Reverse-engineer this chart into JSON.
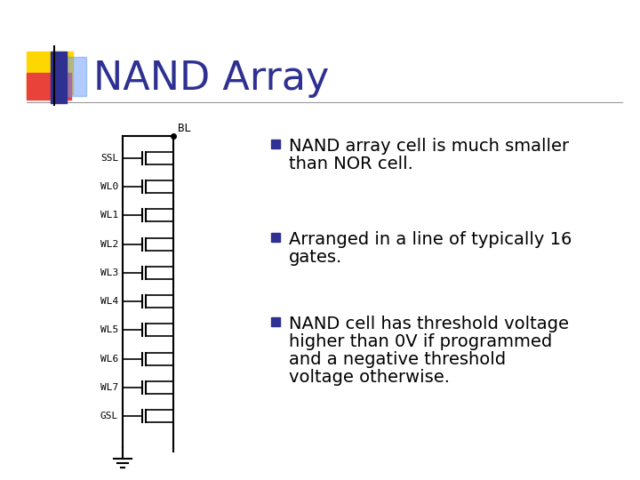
{
  "title": "NAND Array",
  "title_color": "#2E3192",
  "title_fontsize": 32,
  "background_color": "#FFFFFF",
  "header_bar_color": "#2E3192",
  "header_yellow_color": "#FFD700",
  "header_red_color": "#E8423A",
  "header_blue_glow_color": "#6699FF",
  "bullet_color": "#2E3192",
  "bullet_points": [
    "NAND array cell is much smaller\nthan NOR cell.",
    "Arranged in a line of typically 16\ngates.",
    "NAND cell has threshold voltage\nhigher than 0V if programmed\nand a negative threshold\nvoltage otherwise."
  ],
  "diagram_labels": [
    "SSL",
    "WL0",
    "WL1",
    "WL2",
    "WL3",
    "WL4",
    "WL5",
    "WL6",
    "WL7",
    "GSL"
  ],
  "diagram_color": "#000000",
  "diagram_fontsize": 8,
  "bl_label": "BL",
  "text_fontsize": 14,
  "text_color": "#000000",
  "title_underline_color": "#999999",
  "dot_at_junction": true
}
